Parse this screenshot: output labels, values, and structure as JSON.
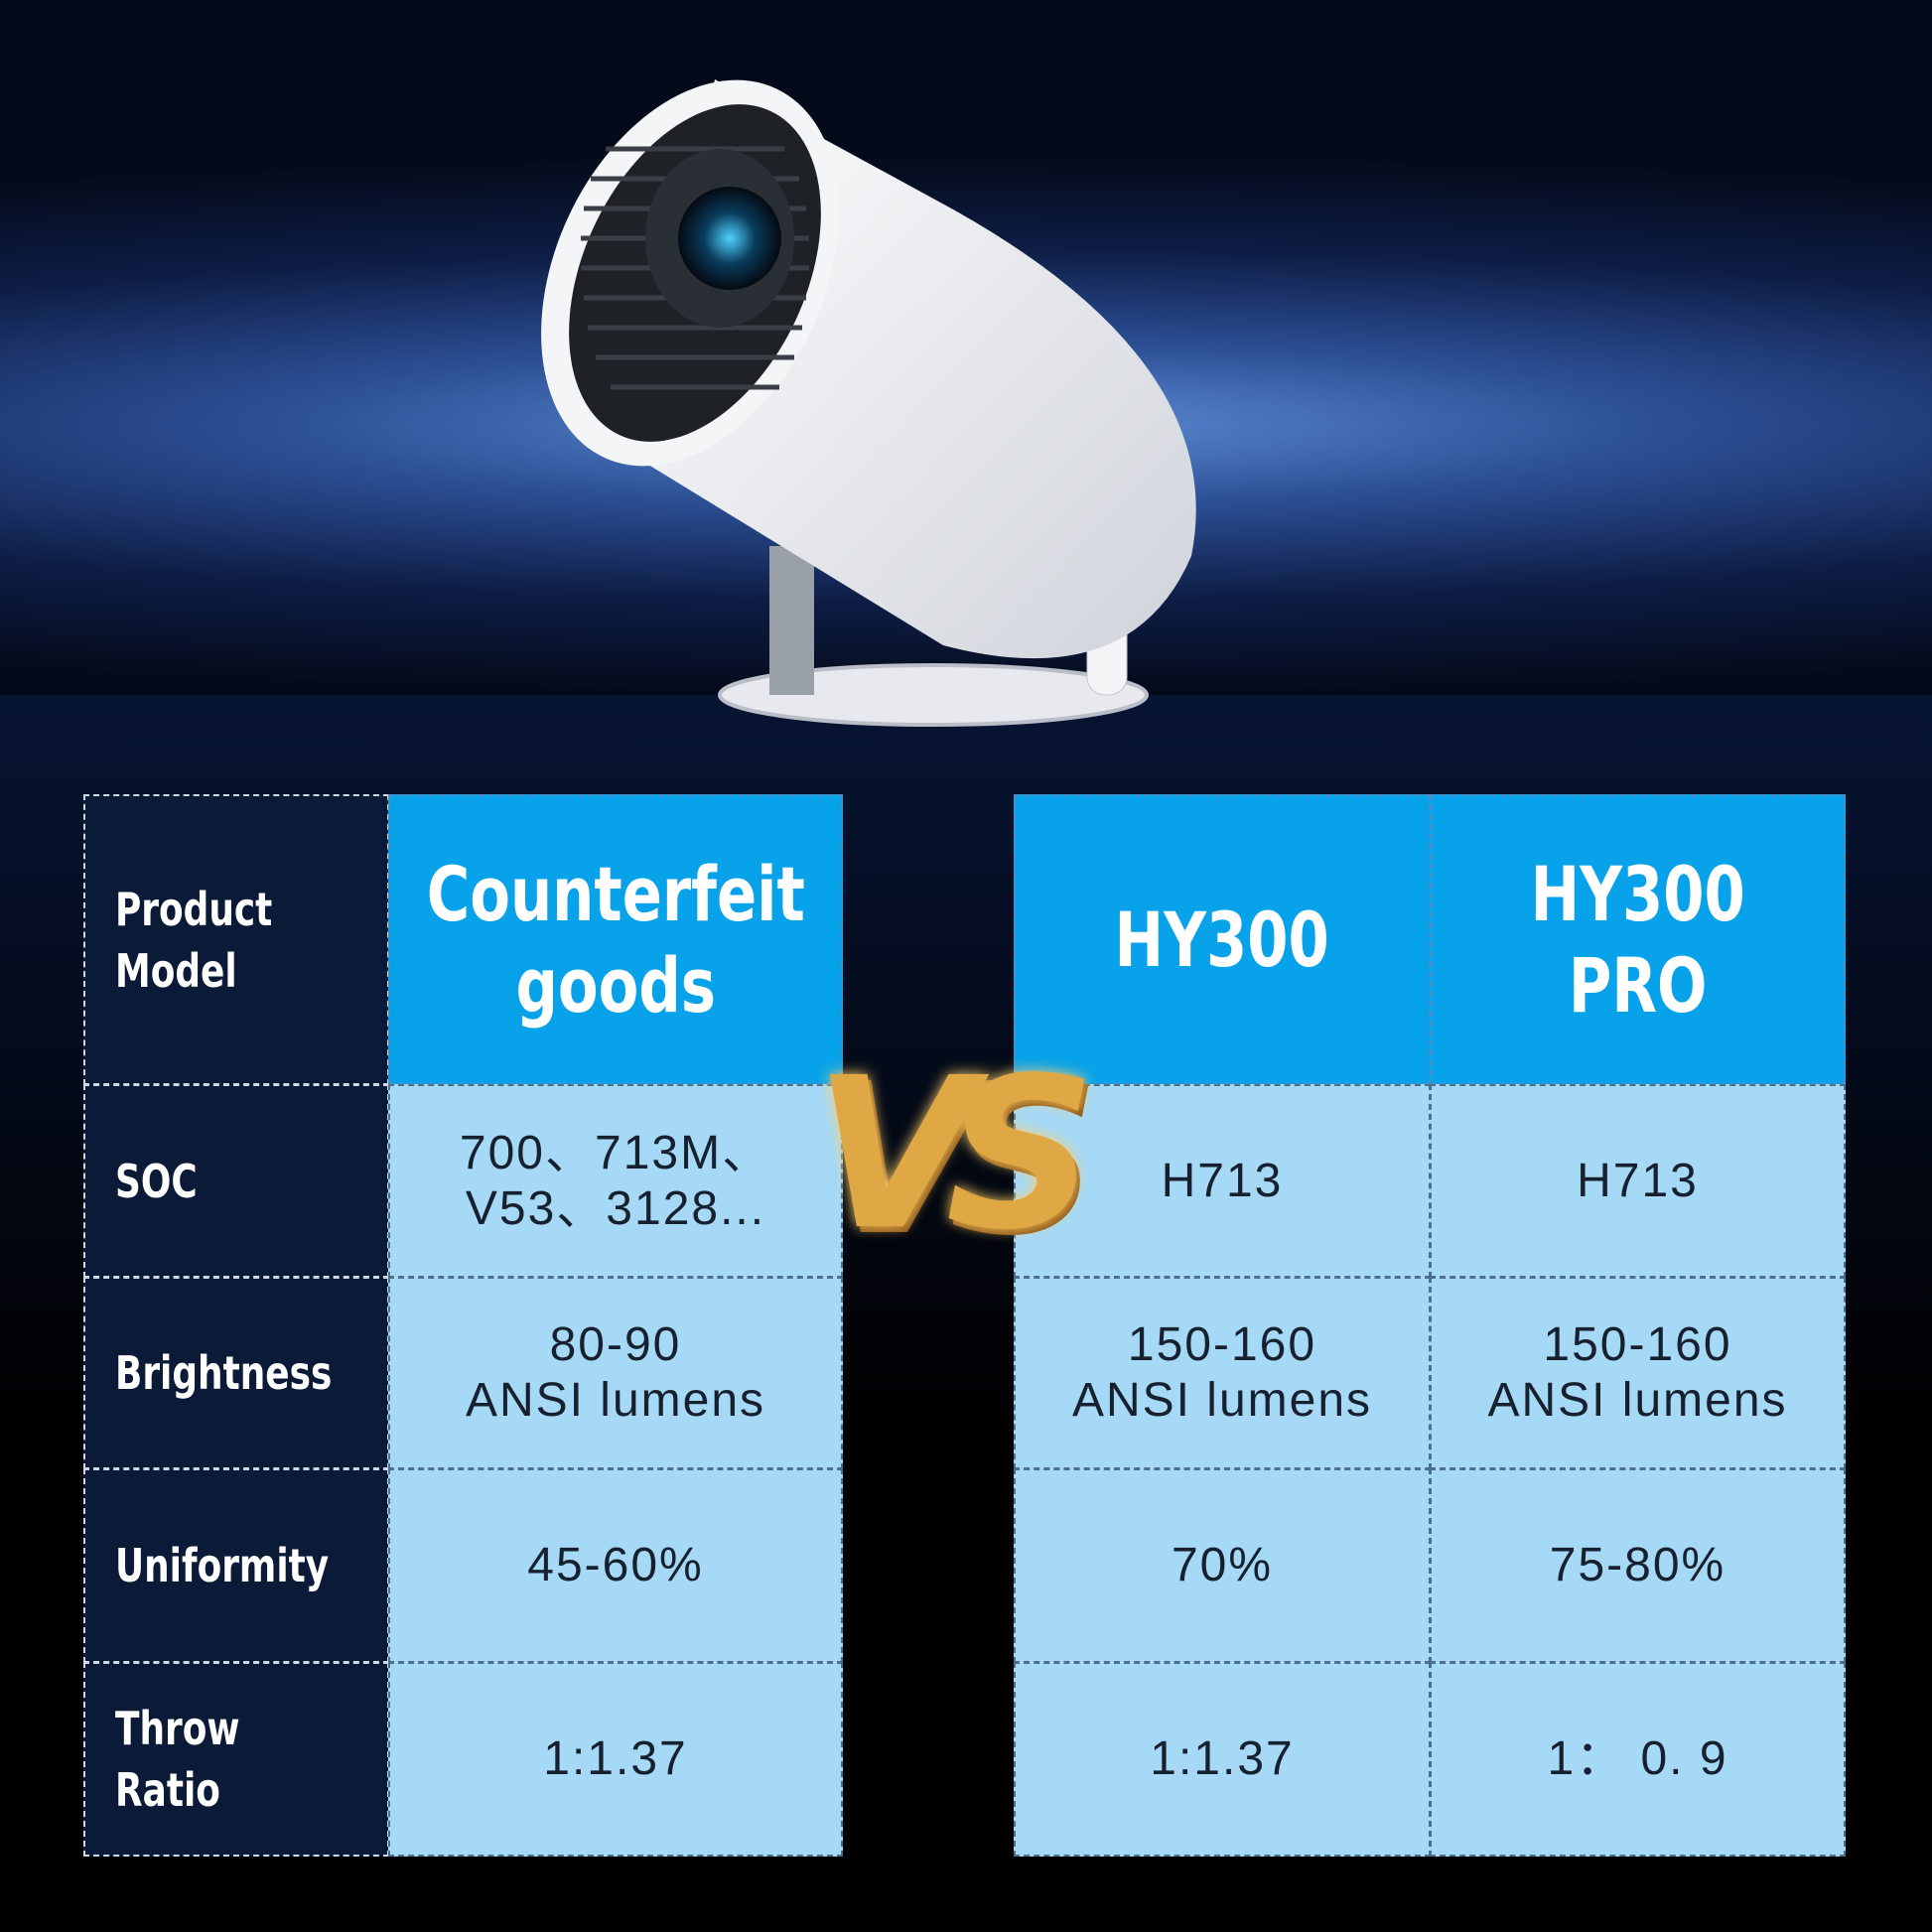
{
  "vs_label": "VS",
  "table": {
    "row_labels": [
      "Product\nModel",
      "SOC",
      "Brightness",
      "Uniformity",
      "Throw Ratio"
    ],
    "columns": [
      {
        "header": "Counterfeit\ngoods",
        "values": [
          "700、713M、\nV53、3128...",
          "80-90\nANSI lumens",
          "45-60%",
          "1:1.37"
        ]
      },
      {
        "header": "HY300",
        "values": [
          "H713",
          "150-160\nANSI lumens",
          "70%",
          "1:1.37"
        ]
      },
      {
        "header": "HY300\nPRO",
        "values": [
          "H713",
          "150-160\nANSI lumens",
          "75-80%",
          "1： 0. 9"
        ]
      }
    ]
  },
  "colors": {
    "header_blue": "#08a2ea",
    "cell_blue": "#a6d9f6",
    "label_navy": "#0b1a36"
  }
}
